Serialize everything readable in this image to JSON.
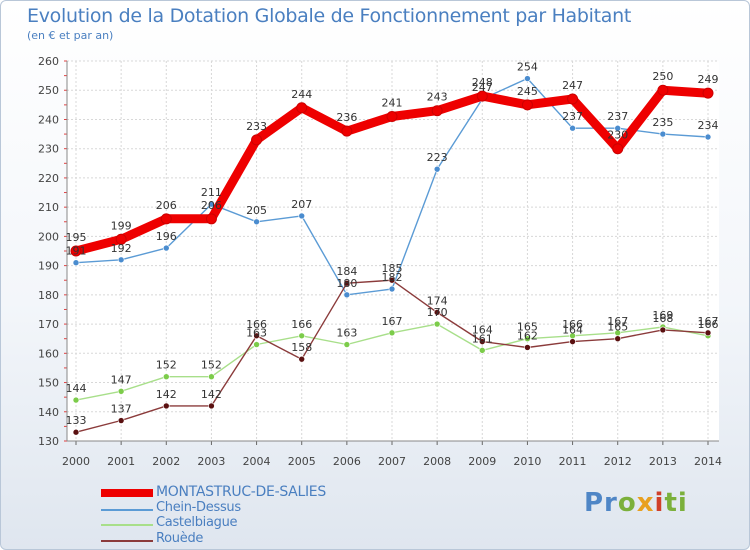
{
  "title": "Evolution de la Dotation Globale de Fonctionnement par Habitant",
  "subtitle": "(en € et par an)",
  "logo": {
    "text": "Proxiti",
    "parts": [
      "Pr",
      "o",
      "x",
      "i",
      "ti"
    ]
  },
  "chart_data": {
    "type": "line",
    "title": "Evolution de la Dotation Globale de Fonctionnement par Habitant",
    "subtitle": "(en € et par an)",
    "x": [
      2000,
      2001,
      2002,
      2003,
      2004,
      2005,
      2006,
      2007,
      2008,
      2009,
      2010,
      2011,
      2012,
      2013,
      2014
    ],
    "ylim": [
      130,
      260
    ],
    "yticks": [
      130,
      140,
      150,
      160,
      170,
      180,
      190,
      200,
      210,
      220,
      230,
      240,
      250,
      260
    ],
    "grid": true,
    "legend_position": "bottom-left",
    "series": [
      {
        "name": "MONTASTRUC-DE-SALIES",
        "color": "#ee0000",
        "marker": "#ee0000",
        "values": [
          195,
          199,
          206,
          206,
          233,
          244,
          236,
          241,
          243,
          248,
          245,
          247,
          230,
          250,
          249
        ],
        "labels": [
          "195",
          "199",
          "206",
          "206",
          "233",
          "244",
          "236",
          "241",
          "243",
          "248",
          "245",
          "247",
          "230",
          "250",
          "249"
        ]
      },
      {
        "name": "Chein-Dessus",
        "color": "#5b9bd5",
        "marker": "#4a8ccf",
        "values": [
          191,
          192,
          196,
          211,
          205,
          207,
          180,
          182,
          223,
          247,
          254,
          237,
          237,
          235,
          234
        ],
        "labels": [
          "191",
          "192",
          "196",
          "211",
          "205",
          "207",
          "180",
          "182",
          "223",
          "247",
          "254",
          "237",
          "237",
          "235",
          "234"
        ]
      },
      {
        "name": "Castelbiague",
        "color": "#a8df8a",
        "marker": "#7ccc4a",
        "values": [
          144,
          147,
          152,
          152,
          163,
          166,
          163,
          167,
          170,
          161,
          165,
          166,
          167,
          169,
          166
        ],
        "labels": [
          "144",
          "147",
          "152",
          "152",
          "163",
          "166",
          "163",
          "167",
          "170",
          "161",
          "165",
          "166",
          "167",
          "169",
          "166"
        ]
      },
      {
        "name": "Rouède",
        "color": "#8b3b3b",
        "marker": "#5a1010",
        "values": [
          133,
          137,
          142,
          142,
          166,
          158,
          184,
          185,
          174,
          164,
          162,
          164,
          165,
          168,
          167
        ],
        "labels": [
          "133",
          "137",
          "142",
          "142",
          "166",
          "158",
          "184",
          "185",
          "174",
          "164",
          "162",
          "164",
          "165",
          "168",
          "167"
        ]
      }
    ]
  }
}
